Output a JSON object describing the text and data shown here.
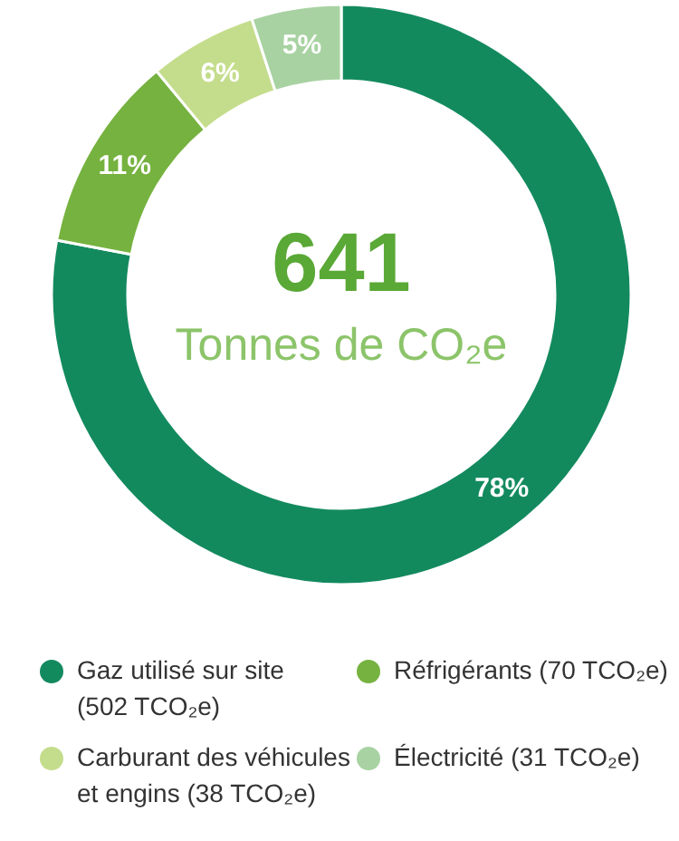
{
  "chart_data": {
    "type": "donut",
    "title": "641",
    "subtitle": "Tonnes de CO₂e",
    "categories": [
      "Gaz utilisé sur site (502 TCO₂e)",
      "Réfrigérants (70 TCO₂e)",
      "Carburant des véhicules et engins (38 TCO₂e)",
      "Électricité (31 TCO₂e)"
    ],
    "values": [
      78,
      11,
      6,
      5
    ],
    "value_labels": [
      "78%",
      "11%",
      "6%",
      "5%"
    ],
    "colors": [
      "#138a5e",
      "#76b23f",
      "#c4dd8c",
      "#a8d2a2"
    ],
    "legend": "bottom"
  }
}
